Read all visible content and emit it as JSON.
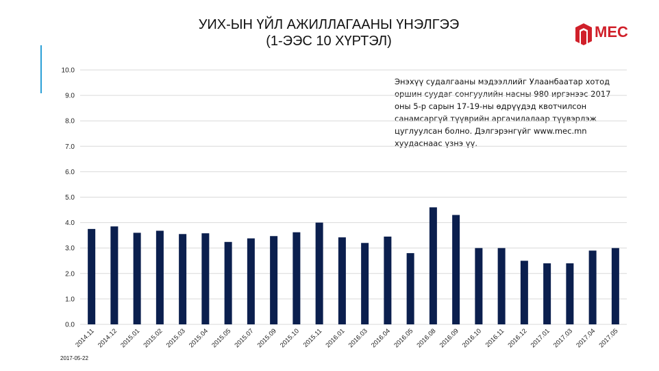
{
  "title_line1": "УИХ-ЫН ҮЙЛ АЖИЛЛАГААНЫ ҮНЭЛГЭЭ",
  "title_line2": "(1-ЭЭС 10 ХҮРТЭЛ)",
  "logo_text": "MEC",
  "note": "Энэхүү судалгааны мэдээллийг Улаанбаатар хотод оршин суудаг сонгуулийн насны 980 иргэнээс 2017 оны 5-р сарын 17-19-ны өдрүүдэд квотчилсон санамсаргүй түүврийн аргачилалаар түүвэрлэж цуглуулсан болно. Дэлгэрэнгүйг www.mec.mn хуудаснаас үзнэ үү.",
  "date_stamp": "2017-05-22",
  "colors": {
    "bar": "#0b1f4e",
    "accent": "#2a9fd6",
    "brand": "#d0202a",
    "grid": "#d9d9d9"
  },
  "chart_data": {
    "type": "bar",
    "categories": [
      "2014.11",
      "2014.12",
      "2015.01",
      "2015.02",
      "2015.03",
      "2015.04",
      "2015.05",
      "2015.07",
      "2015.09",
      "2015.10",
      "2015.11",
      "2016.01",
      "2016.03",
      "2016.04",
      "2016.05",
      "2016.08",
      "2016.09",
      "2016.10",
      "2016.11",
      "2016.12",
      "2017.01",
      "2017.03",
      "2017.04",
      "2017.05"
    ],
    "values": [
      3.75,
      3.85,
      3.6,
      3.68,
      3.55,
      3.58,
      3.24,
      3.38,
      3.47,
      3.62,
      4.0,
      3.42,
      3.2,
      3.45,
      2.8,
      4.6,
      4.3,
      3.0,
      3.0,
      2.5,
      2.4,
      2.4,
      2.9,
      3.0
    ],
    "ylim": [
      0,
      10
    ],
    "yticks": [
      "0.0",
      "1.0",
      "2.0",
      "3.0",
      "4.0",
      "5.0",
      "6.0",
      "7.0",
      "8.0",
      "9.0",
      "10.0"
    ],
    "grid": true,
    "legend": "none"
  }
}
